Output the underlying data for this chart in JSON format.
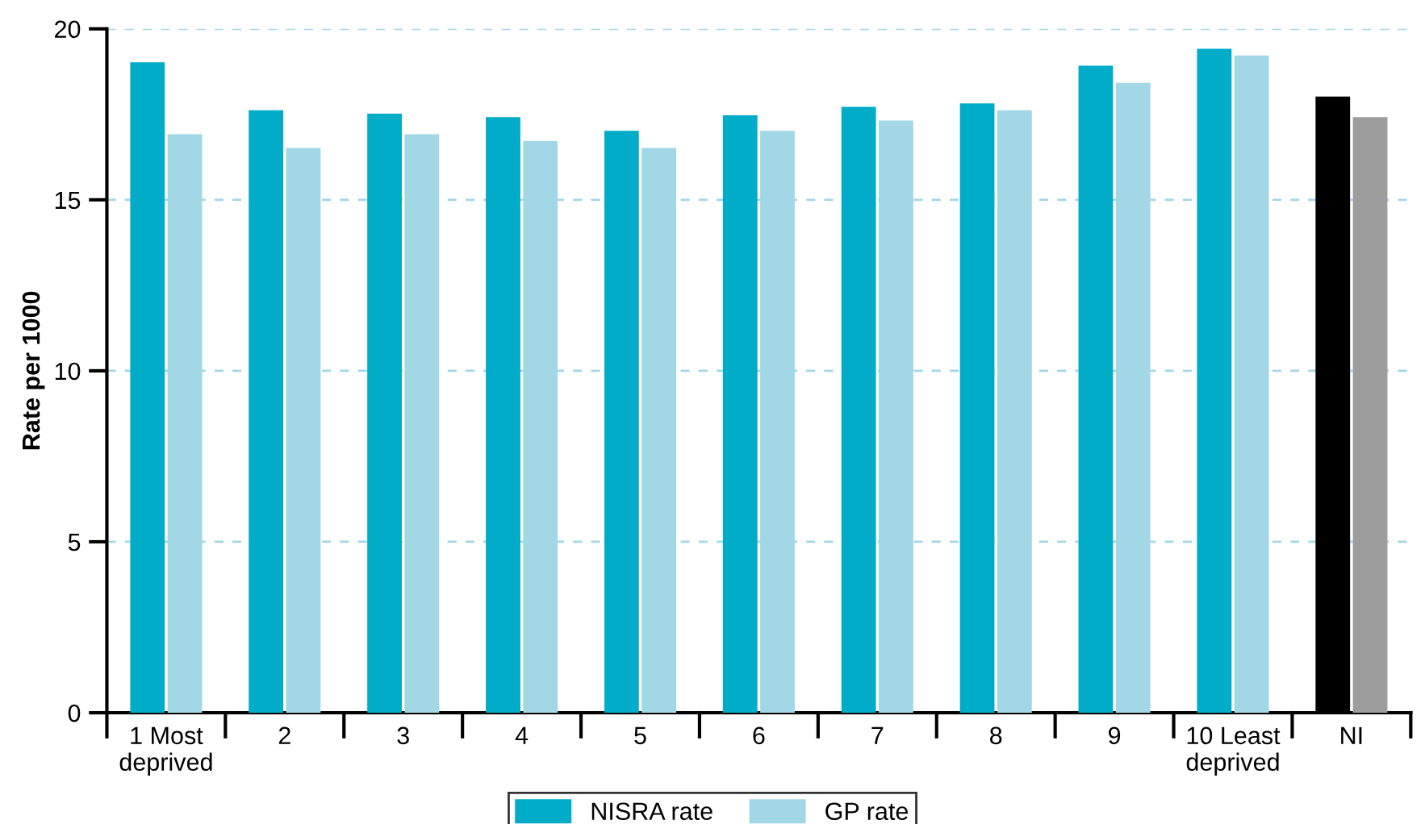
{
  "chart_data": {
    "type": "bar",
    "ylabel": "Rate per 1000",
    "categories": [
      "1 Most\ndeprived",
      "2",
      "3",
      "4",
      "5",
      "6",
      "7",
      "8",
      "9",
      "10 Least\ndeprived",
      "NI"
    ],
    "series": [
      {
        "name": "NISRA rate",
        "color": "#00acc8",
        "colors": [
          "#00acc8",
          "#00acc8",
          "#00acc8",
          "#00acc8",
          "#00acc8",
          "#00acc8",
          "#00acc8",
          "#00acc8",
          "#00acc8",
          "#00acc8",
          "#000000"
        ],
        "values": [
          19.0,
          17.6,
          17.5,
          17.4,
          17.0,
          17.45,
          17.7,
          17.8,
          18.9,
          19.4,
          18.0
        ]
      },
      {
        "name": "GP rate",
        "color": "#a2d7e6",
        "colors": [
          "#a2d7e6",
          "#a2d7e6",
          "#a2d7e6",
          "#a2d7e6",
          "#a2d7e6",
          "#a2d7e6",
          "#a2d7e6",
          "#a2d7e6",
          "#a2d7e6",
          "#a2d7e6",
          "#9d9d9d"
        ],
        "values": [
          16.9,
          16.5,
          16.9,
          16.7,
          16.5,
          17.0,
          17.3,
          17.6,
          18.4,
          19.2,
          17.4
        ]
      }
    ],
    "ylim": [
      0,
      20
    ],
    "yticks": [
      0,
      5,
      10,
      15,
      20
    ],
    "grid": "y",
    "legend": "bottom"
  }
}
